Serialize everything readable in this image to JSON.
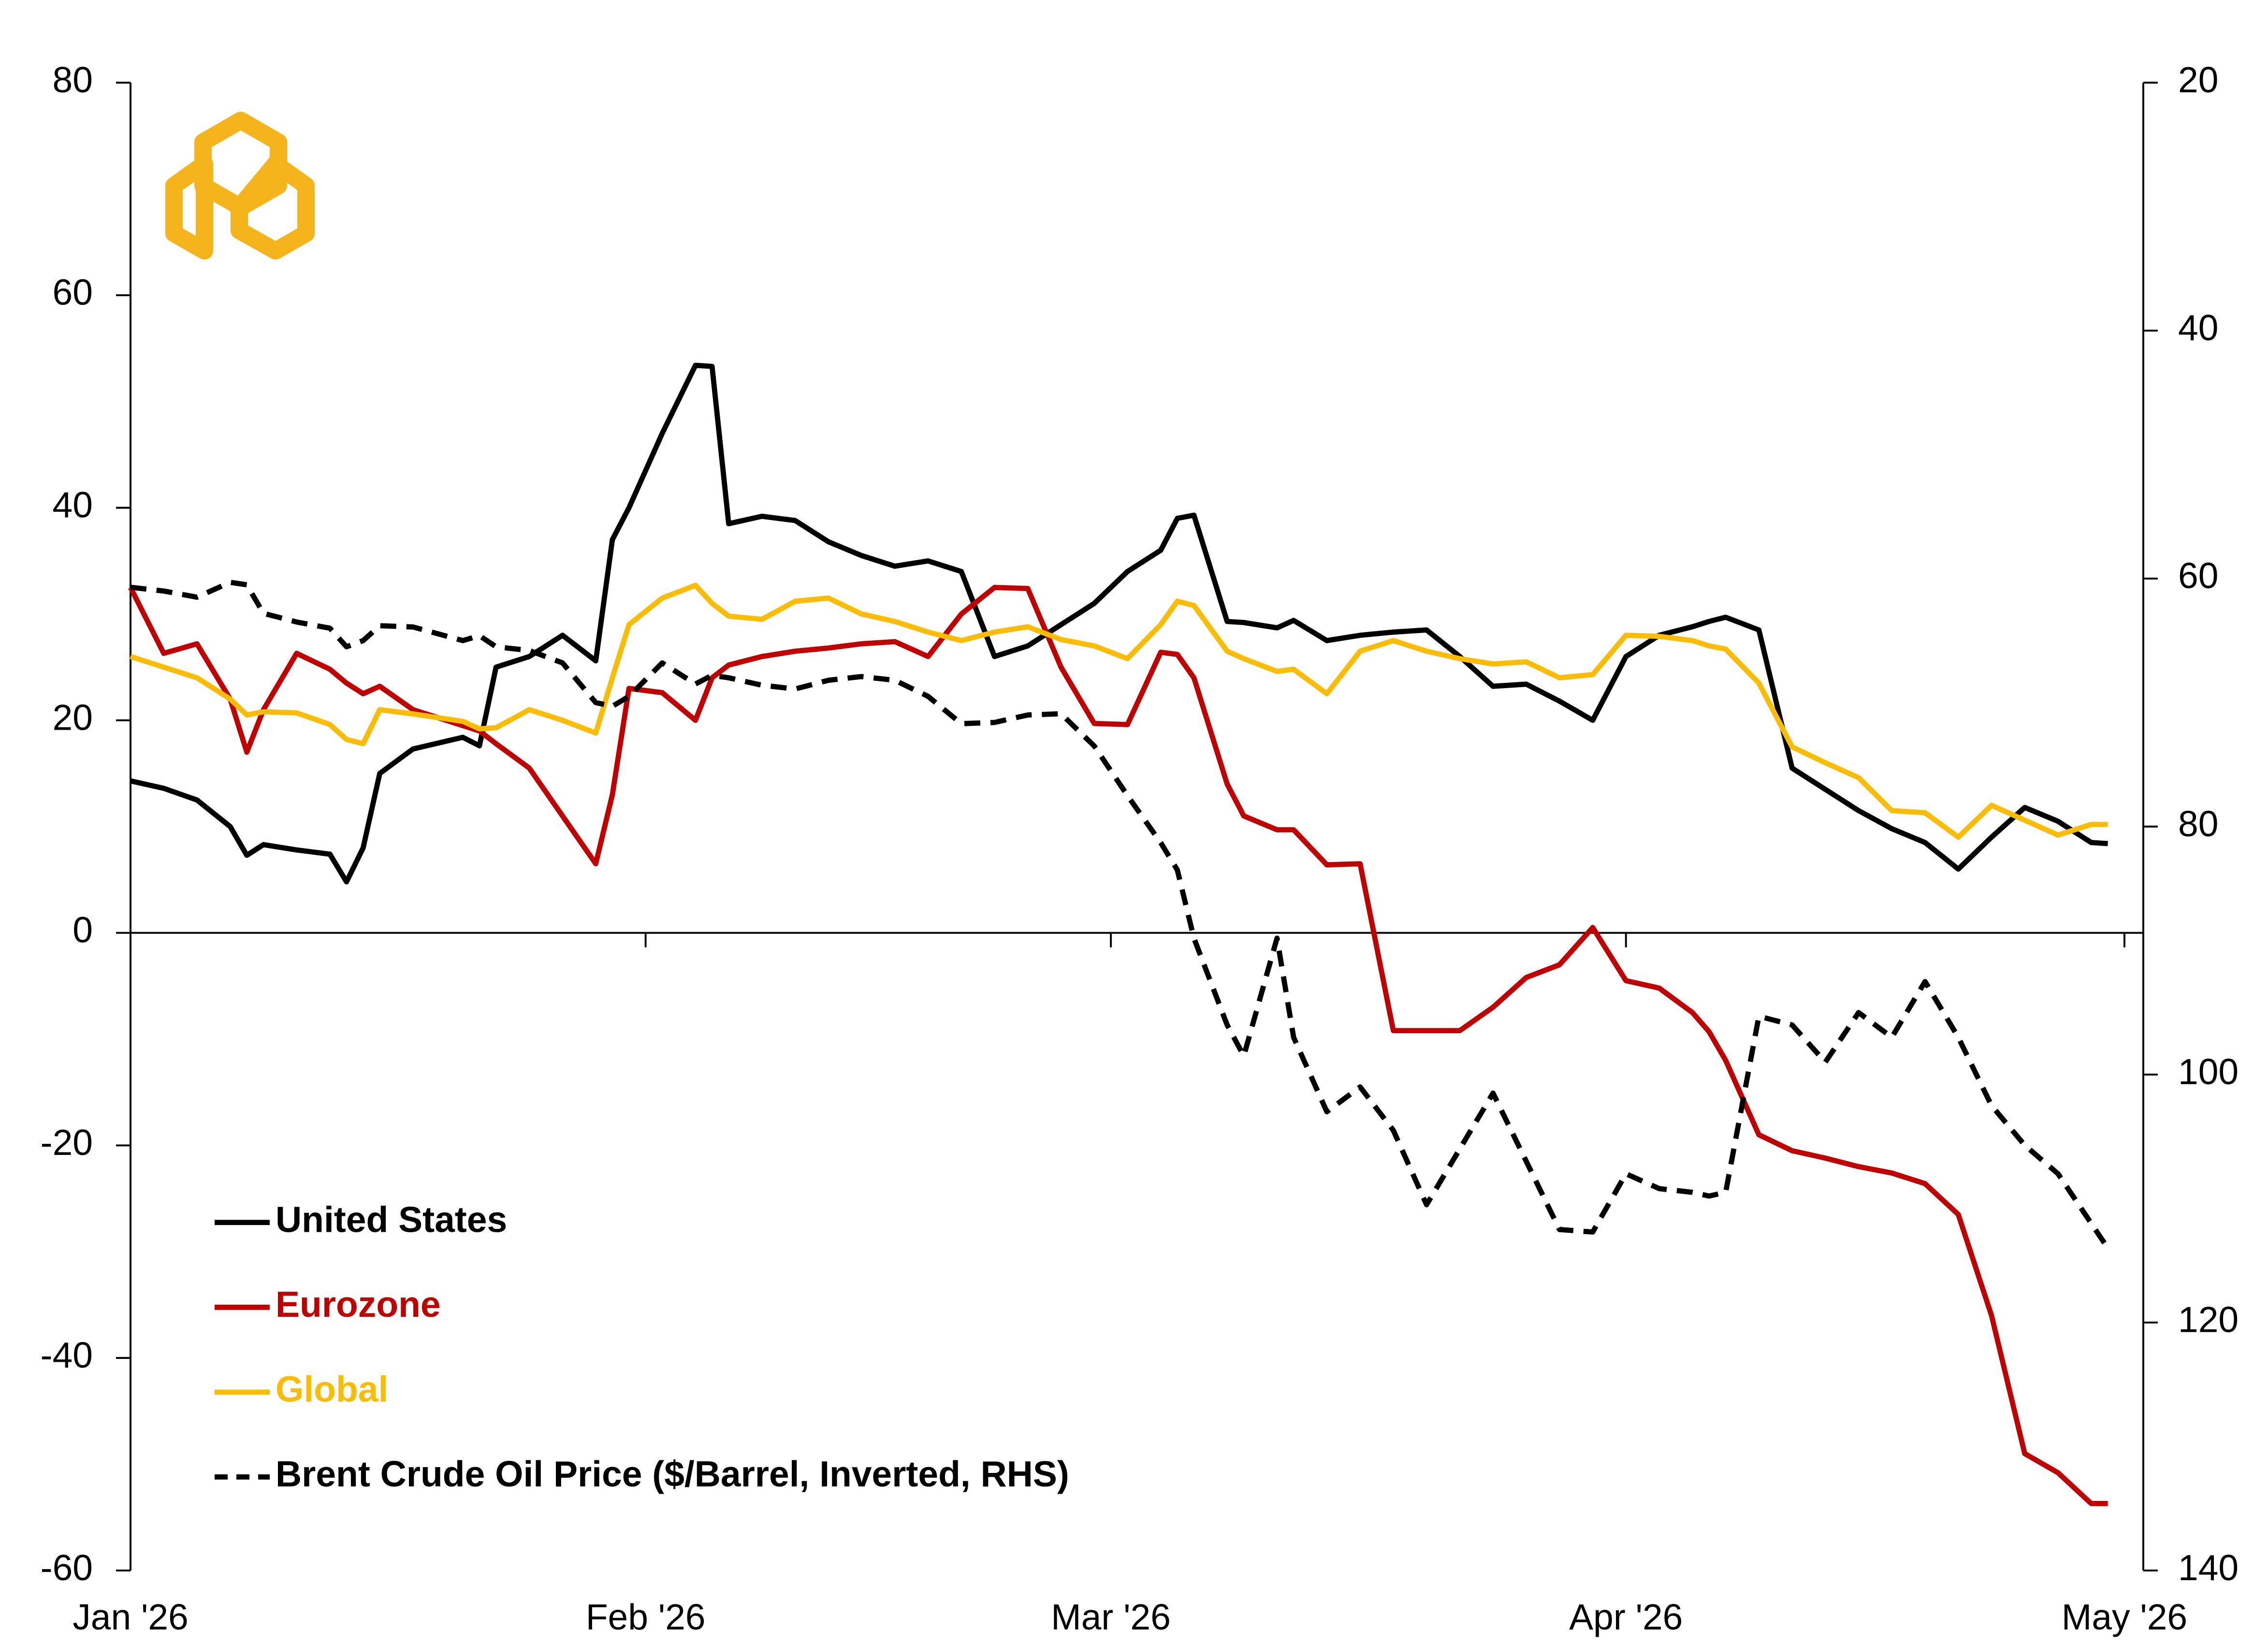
{
  "chart_data": {
    "type": "line",
    "x": [
      0,
      2,
      4,
      6,
      7,
      8,
      10,
      12,
      13,
      14,
      15,
      17,
      20,
      21,
      22,
      24,
      26,
      28,
      29,
      30,
      32,
      34,
      35,
      36,
      38,
      40,
      42,
      44,
      46,
      48,
      50,
      52,
      54,
      56,
      58,
      60,
      62,
      63,
      64,
      66,
      67,
      69,
      70,
      72,
      74,
      76,
      78,
      80,
      82,
      84,
      86,
      88,
      90,
      92,
      94,
      95,
      96,
      98,
      100,
      102,
      104,
      106,
      108,
      110,
      112,
      114,
      116,
      118,
      119
    ],
    "xlim": [
      0,
      120
    ],
    "xticks": [
      {
        "value": 0,
        "label": "Jan '26"
      },
      {
        "value": 31,
        "label": "Feb '26"
      },
      {
        "value": 59,
        "label": "Mar '26"
      },
      {
        "value": 90,
        "label": "Apr '26"
      },
      {
        "value": 120,
        "label": "May '26"
      }
    ],
    "ylim": [
      -60,
      80
    ],
    "yticks": [
      -60,
      -40,
      -20,
      0,
      20,
      40,
      60,
      80
    ],
    "y2lim": [
      20,
      140
    ],
    "y2ticks": [
      20,
      40,
      60,
      80,
      100,
      120,
      140
    ],
    "y2_inverted": true,
    "legend": "lower left",
    "series": [
      {
        "name": "United States",
        "color": "#000000",
        "values": [
          14.3,
          13.6,
          12.5,
          10,
          7.3,
          8.3,
          7.8,
          7.4,
          4.8,
          8,
          15,
          17.3,
          18.4,
          17.6,
          25,
          26,
          28,
          25.6,
          37,
          40,
          47,
          53.4,
          53.3,
          38.5,
          39.2,
          38.8,
          36.8,
          35.5,
          34.5,
          35,
          34,
          26,
          27,
          29,
          31,
          34,
          36,
          39,
          39.3,
          29.3,
          29.2,
          28.7,
          29.4,
          27.5,
          28,
          28.3,
          28.5,
          26,
          23.2,
          23.4,
          21.8,
          20,
          26,
          28,
          28.8,
          29.3,
          29.7,
          28.5,
          15.5,
          13.5,
          11.5,
          9.8,
          8.5,
          6,
          9,
          11.8,
          10.5,
          8.5,
          8.4
        ]
      },
      {
        "name": "Eurozone",
        "color": "#c00000",
        "values": [
          32.5,
          26.3,
          27.2,
          22,
          17,
          21,
          26.3,
          24.8,
          23.5,
          22.5,
          23.2,
          21,
          19.5,
          19,
          17.8,
          15.5,
          11,
          6.5,
          13,
          23,
          22.6,
          20,
          24,
          25.2,
          26,
          26.5,
          26.8,
          27.2,
          27.4,
          26,
          30,
          32.5,
          32.4,
          25,
          19.7,
          19.6,
          26.4,
          26.2,
          24,
          14,
          11,
          9.7,
          9.7,
          6.4,
          6.5,
          -9.2,
          -9.2,
          -9.2,
          -7,
          -4.2,
          -3,
          0.5,
          -4.5,
          -5.2,
          -7.5,
          -9.3,
          -12,
          -19,
          -20.5,
          -21.2,
          -22,
          -22.6,
          -23.6,
          -26.5,
          -36,
          -49,
          -50.8,
          -53.7,
          -53.7
        ]
      },
      {
        "name": "Global",
        "color": "#fbbc05",
        "values": [
          26,
          25,
          24,
          22,
          20.5,
          20.8,
          20.7,
          19.6,
          18.2,
          17.8,
          21,
          20.6,
          19.9,
          19.2,
          19.3,
          21,
          20,
          18.8,
          24,
          29,
          31.5,
          32.7,
          31,
          29.8,
          29.5,
          31.2,
          31.5,
          30,
          29.3,
          28.3,
          27.5,
          28.3,
          28.8,
          27.6,
          27,
          25.8,
          29,
          31.2,
          30.8,
          26.5,
          25.8,
          24.6,
          24.8,
          22.5,
          26.5,
          27.5,
          26.5,
          25.8,
          25.3,
          25.5,
          24,
          24.3,
          28,
          27.9,
          27.5,
          27,
          26.7,
          23.5,
          17.5,
          16,
          14.6,
          11.5,
          11.3,
          9,
          12,
          10.6,
          9.2,
          10.2,
          10.2
        ]
      },
      {
        "name": "Brent Crude Oil Price ($/Barrel, Inverted, RHS)",
        "color": "#000000",
        "dashed": true,
        "axis": "y2",
        "values": [
          60.7,
          61,
          61.5,
          60.3,
          60.5,
          62.8,
          63.5,
          64,
          65.5,
          65,
          63.8,
          63.9,
          65,
          64.6,
          65.5,
          65.8,
          66.8,
          70,
          70.3,
          69.5,
          66.8,
          68.5,
          67.8,
          68,
          68.6,
          68.9,
          68.2,
          67.9,
          68.2,
          69.5,
          71.7,
          71.6,
          71,
          70.9,
          73.5,
          77.5,
          81.3,
          83.5,
          89,
          96,
          98.5,
          89,
          97,
          103,
          101,
          104.5,
          110.5,
          106,
          101.5,
          107,
          112.5,
          112.7,
          108,
          109.2,
          109.5,
          109.8,
          109.5,
          95.3,
          96,
          99,
          95,
          97,
          92.5,
          97,
          102.5,
          105.7,
          108,
          112,
          114
        ]
      }
    ]
  }
}
